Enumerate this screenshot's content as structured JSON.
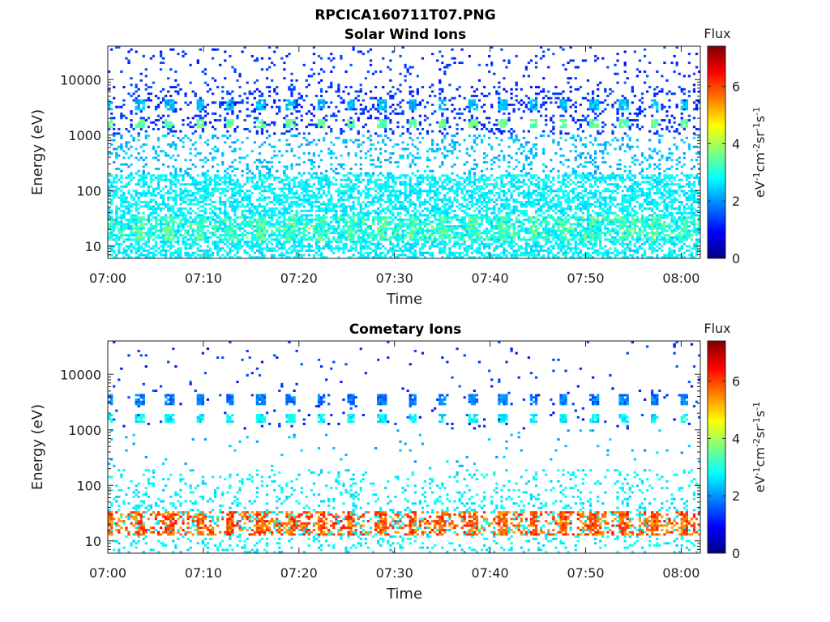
{
  "figure_title": "RPCICA160711T07.PNG",
  "colormap": [
    "#00007f",
    "#0000ff",
    "#007fff",
    "#00ffff",
    "#7fff7f",
    "#ffff00",
    "#ff7f00",
    "#ff0000",
    "#7f0000"
  ],
  "chart_data": [
    {
      "type": "heatmap",
      "title": "Solar Wind Ions",
      "xlabel": "Time",
      "ylabel": "Energy (eV)",
      "x_ticks": [
        "07:00",
        "07:10",
        "07:20",
        "07:30",
        "07:40",
        "07:50",
        "08:00"
      ],
      "y_ticks": [
        "10",
        "100",
        "1000",
        "10000"
      ],
      "y_scale": "log",
      "y_range": [
        6,
        40000
      ],
      "x_range": [
        "07:00",
        "08:02"
      ],
      "colorbar": {
        "title": "Flux",
        "label": "eV-1cm-2sr-1s-1",
        "ticks": [
          "0",
          "2",
          "4",
          "6"
        ],
        "range": [
          0,
          7.4
        ]
      },
      "features": [
        {
          "energy_eV": 1600,
          "flux": 3.5,
          "description": "periodic bursts, ~3 min cadence"
        },
        {
          "energy_eV": 3500,
          "flux": 2.3,
          "description": "periodic bursts"
        },
        {
          "energy_eV": 20,
          "flux": 3.3,
          "description": "low-energy band"
        }
      ]
    },
    {
      "type": "heatmap",
      "title": "Cometary Ions",
      "xlabel": "Time",
      "ylabel": "Energy (eV)",
      "x_ticks": [
        "07:00",
        "07:10",
        "07:20",
        "07:30",
        "07:40",
        "07:50",
        "08:00"
      ],
      "y_ticks": [
        "10",
        "100",
        "1000",
        "10000"
      ],
      "y_scale": "log",
      "y_range": [
        6,
        40000
      ],
      "x_range": [
        "07:00",
        "08:02"
      ],
      "colorbar": {
        "title": "Flux",
        "label": "eV-1cm-2sr-1s-1",
        "ticks": [
          "0",
          "2",
          "4",
          "6"
        ],
        "range": [
          0,
          7.4
        ]
      },
      "features": [
        {
          "energy_eV": 1600,
          "flux": 2.7,
          "description": "periodic bursts"
        },
        {
          "energy_eV": 3500,
          "flux": 1.8,
          "description": "periodic bursts"
        },
        {
          "energy_eV": 20,
          "flux": 5.8,
          "description": "intense low-energy bursts"
        }
      ]
    }
  ]
}
